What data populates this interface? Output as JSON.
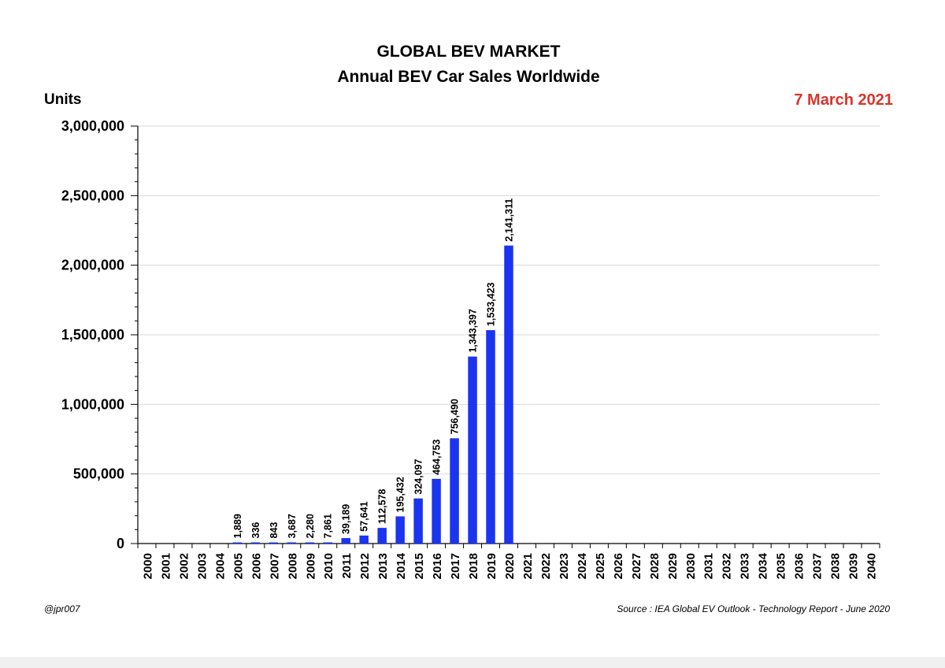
{
  "header": {
    "title": "GLOBAL BEV MARKET",
    "subtitle": "Annual BEV Car Sales Worldwide",
    "units_label": "Units",
    "date": "7 March 2021"
  },
  "footer": {
    "credit": "@jpr007",
    "source": "Source : IEA Global EV Outlook - Technology Report - June 2020"
  },
  "colors": {
    "bar": "#1a34f0",
    "date": "#d9342b",
    "grid": "#d9d9d9"
  },
  "chart_data": {
    "type": "bar",
    "title": "GLOBAL BEV MARKET",
    "subtitle": "Annual BEV Car Sales Worldwide",
    "ylabel": "Units",
    "xlabel": "",
    "ylim": [
      0,
      3000000
    ],
    "y_ticks": [
      0,
      500000,
      1000000,
      1500000,
      2000000,
      2500000,
      3000000
    ],
    "y_tick_labels": [
      "0",
      "500,000",
      "1,000,000",
      "1,500,000",
      "2,000,000",
      "2,500,000",
      "3,000,000"
    ],
    "grid": true,
    "legend": "none",
    "categories": [
      "2000",
      "2001",
      "2002",
      "2003",
      "2004",
      "2005",
      "2006",
      "2007",
      "2008",
      "2009",
      "2010",
      "2011",
      "2012",
      "2013",
      "2014",
      "2015",
      "2016",
      "2017",
      "2018",
      "2019",
      "2020",
      "2021",
      "2022",
      "2023",
      "2024",
      "2025",
      "2026",
      "2027",
      "2028",
      "2029",
      "2030",
      "2031",
      "2032",
      "2033",
      "2034",
      "2035",
      "2036",
      "2037",
      "2038",
      "2039",
      "2040"
    ],
    "values": [
      null,
      null,
      null,
      null,
      null,
      1889,
      336,
      843,
      3687,
      2280,
      7861,
      39189,
      57641,
      112578,
      195432,
      324097,
      464753,
      756490,
      1343397,
      1533423,
      2141311,
      null,
      null,
      null,
      null,
      null,
      null,
      null,
      null,
      null,
      null,
      null,
      null,
      null,
      null,
      null,
      null,
      null,
      null,
      null,
      null
    ],
    "value_labels": [
      "",
      "",
      "",
      "",
      "",
      "1,889",
      "336",
      "843",
      "3,687",
      "2,280",
      "7,861",
      "39,189",
      "57,641",
      "112,578",
      "195,432",
      "324,097",
      "464,753",
      "756,490",
      "1,343,397",
      "1,533,423",
      "2,141,311",
      "",
      "",
      "",
      "",
      "",
      "",
      "",
      "",
      "",
      "",
      "",
      "",
      "",
      "",
      "",
      "",
      "",
      "",
      "",
      ""
    ]
  }
}
